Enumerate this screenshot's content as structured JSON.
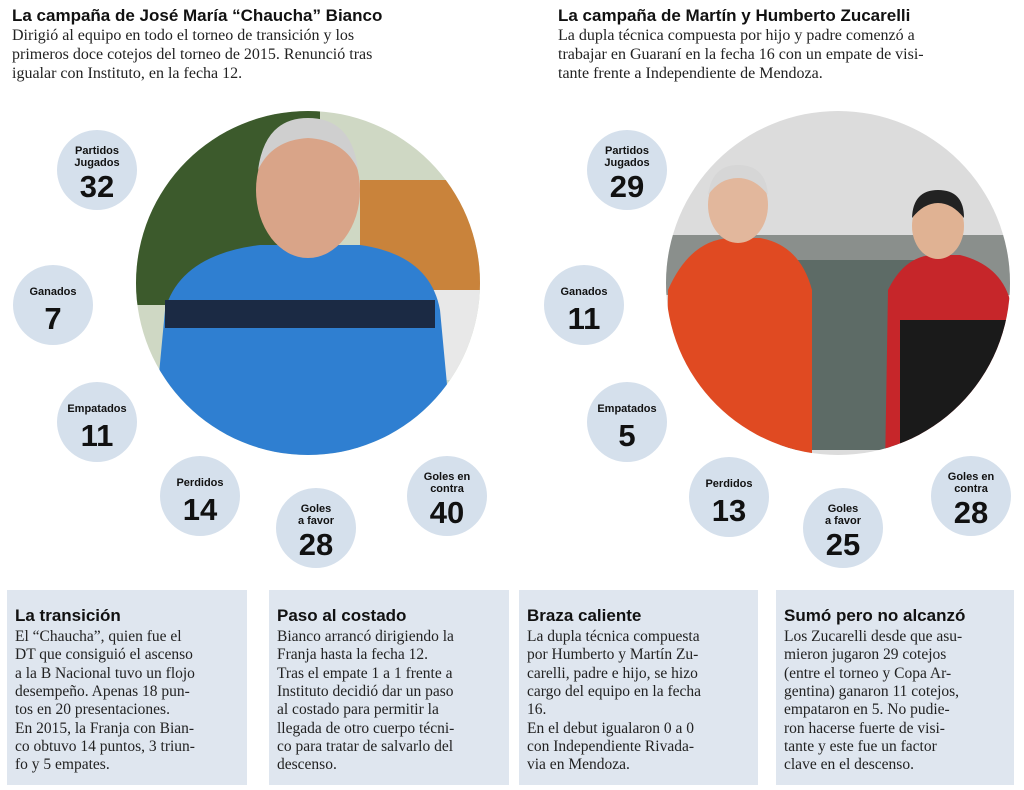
{
  "sections": [
    {
      "title": "La campaña de José María “Chaucha” Bianco",
      "intro": [
        "Dirigió al equipo en todo el torneo de transición y los",
        "primeros doce cotejos del torneo de 2015. Renunció tras",
        "igualar con Instituto, en la fecha 12."
      ],
      "stats": [
        {
          "label": [
            "Partidos",
            "Jugados"
          ],
          "value": 32
        },
        {
          "label": [
            "Ganados"
          ],
          "value": 7
        },
        {
          "label": [
            "Empatados"
          ],
          "value": 11
        },
        {
          "label": [
            "Perdidos"
          ],
          "value": 14
        },
        {
          "label": [
            "Goles",
            "a favor"
          ],
          "value": 28
        },
        {
          "label": [
            "Goles en",
            "contra"
          ],
          "value": 40
        }
      ]
    },
    {
      "title": "La campaña de Martín y Humberto Zucarelli",
      "intro": [
        "La dupla técnica compuesta por hijo y padre comenzó a",
        "trabajar en Guaraní en la fecha 16 con un empate de visi-",
        "tante frente a Independiente de Mendoza."
      ],
      "stats": [
        {
          "label": [
            "Partidos",
            "Jugados"
          ],
          "value": 29
        },
        {
          "label": [
            "Ganados"
          ],
          "value": 11
        },
        {
          "label": [
            "Empatados"
          ],
          "value": 5
        },
        {
          "label": [
            "Perdidos"
          ],
          "value": 13
        },
        {
          "label": [
            "Goles",
            "a favor"
          ],
          "value": 25
        },
        {
          "label": [
            "Goles en",
            "contra"
          ],
          "value": 28
        }
      ]
    }
  ],
  "boxes": [
    {
      "title": "La transición",
      "lines": [
        "El “Chaucha”, quien fue el",
        "DT que consiguió el ascenso",
        "a la B Nacional  tuvo un flojo",
        "desempeño. Apenas 18 pun-",
        "tos en 20 presentaciones.",
        "En 2015, la Franja con Bian-",
        "co obtuvo 14 puntos, 3 triun-",
        "fo y 5 empates."
      ]
    },
    {
      "title": "Paso al costado",
      "lines": [
        "Bianco arrancó dirigiendo la",
        "Franja hasta la fecha 12.",
        "Tras el empate 1 a 1 frente a",
        "Instituto decidió dar un paso",
        "al costado para permitir  la",
        "llegada de otro cuerpo técni-",
        "co para tratar de salvarlo del",
        "descenso."
      ]
    },
    {
      "title": "Braza caliente",
      "lines": [
        "La dupla técnica compuesta",
        "por Humberto y Martín Zu-",
        "carelli, padre e hijo, se hizo",
        "cargo del equipo en la fecha",
        "16.",
        "En el debut igualaron 0 a 0",
        "con Independiente Rivada-",
        "via en Mendoza."
      ]
    },
    {
      "title": "Sumó pero no alcanzó",
      "lines": [
        "Los Zucarelli desde que asu-",
        "mieron jugaron 29 cotejos",
        "(entre el torneo y Copa Ar-",
        "gentina) ganaron 11 cotejos,",
        "empataron en 5. No pudie-",
        "ron hacerse fuerte de visi-",
        "tante y este fue un factor",
        "clave en el descenso."
      ]
    }
  ]
}
